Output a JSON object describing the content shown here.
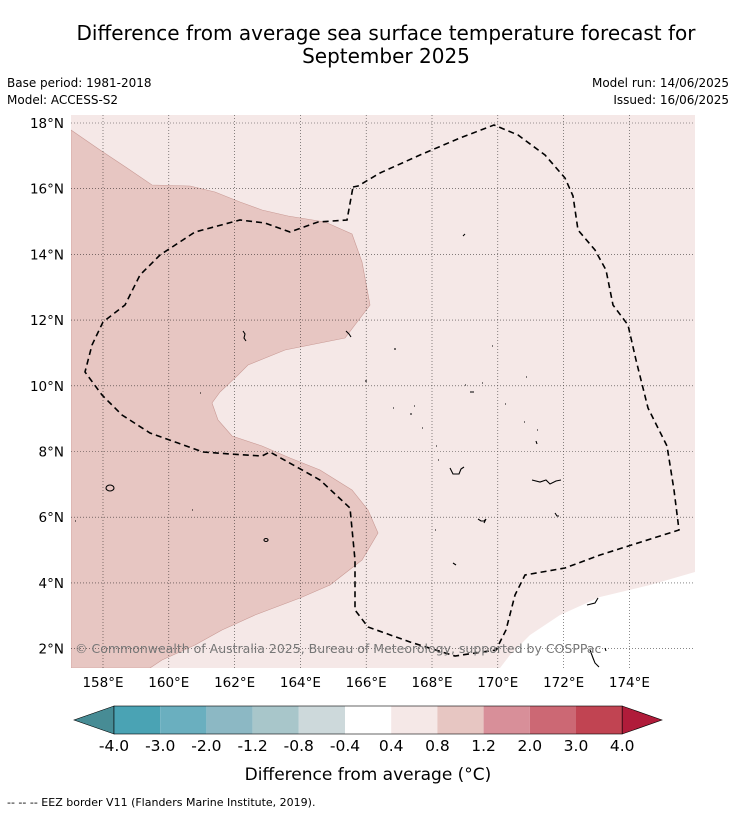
{
  "title": "Difference from average sea surface temperature forecast for September 2025",
  "title_line1": "Difference from average sea surface temperature forecast for",
  "title_line2": "September 2025",
  "meta": {
    "base_period": "Base period: 1981-2018",
    "model": "Model: ACCESS-S2",
    "model_run": "Model run: 14/06/2025",
    "issued": "Issued: 16/06/2025"
  },
  "map": {
    "latitude_labels": [
      "18°N",
      "16°N",
      "14°N",
      "12°N",
      "10°N",
      "8°N",
      "6°N",
      "4°N",
      "2°N"
    ],
    "latitude_values": [
      18,
      16,
      14,
      12,
      10,
      8,
      6,
      4,
      2
    ],
    "longitude_labels": [
      "158°E",
      "160°E",
      "162°E",
      "164°E",
      "166°E",
      "168°E",
      "170°E",
      "172°E",
      "174°E"
    ],
    "longitude_values": [
      158,
      160,
      162,
      164,
      166,
      168,
      170,
      172,
      174
    ],
    "extent": {
      "lon": [
        157,
        175.9
      ],
      "lat": [
        1.5,
        18.25
      ]
    },
    "copyright": "© Commonwealth of Australia 2025, Bureau of Meteorology, supported by COSPPac",
    "colors": {
      "band_0_4_to_0_8": "#f5e8e7",
      "band_0_8_to_1_2": "#e7c6c2",
      "island_outline": "#000000",
      "eez_border": "#000000"
    }
  },
  "colorbar": {
    "labels": [
      "-4.0",
      "-3.0",
      "-2.0",
      "-1.2",
      "-0.8",
      "-0.4",
      "0.4",
      "0.8",
      "1.2",
      "2.0",
      "3.0",
      "4.0"
    ],
    "colors": [
      "#478c95",
      "#4aa3b4",
      "#6aafbf",
      "#8cb8c4",
      "#a8c6ca",
      "#cdd9db",
      "#ffffff",
      "#f5e8e7",
      "#e7c6c2",
      "#d88f99",
      "#cc6874",
      "#c14452",
      "#b01c3a"
    ],
    "title": "Difference from average (°C)"
  },
  "footer": "--  --  -- EEZ border V11 (Flanders Marine Institute, 2019)."
}
